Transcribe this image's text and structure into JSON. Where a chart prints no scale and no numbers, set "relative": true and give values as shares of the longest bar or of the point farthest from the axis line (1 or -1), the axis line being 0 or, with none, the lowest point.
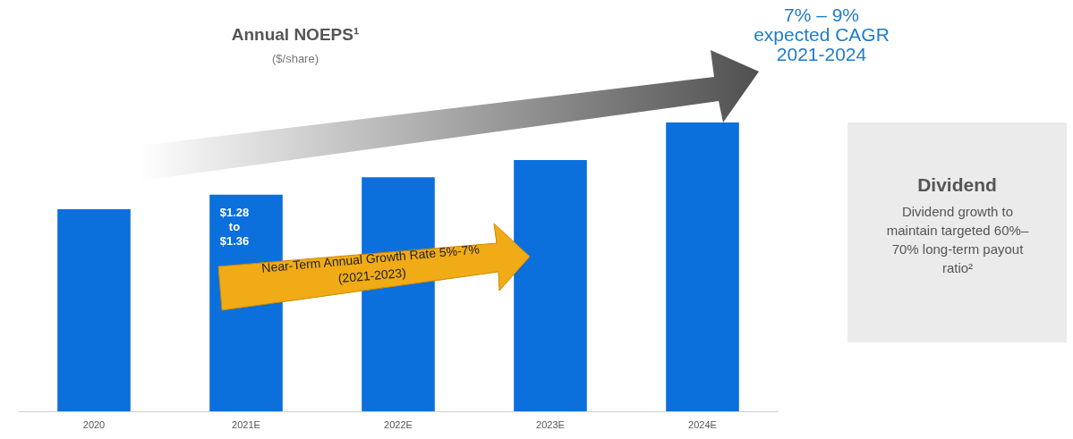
{
  "chart_data": {
    "type": "bar",
    "title": "Annual NOEPS¹",
    "subtitle": "($/share)",
    "relative": true,
    "categories": [
      "2020",
      "2021E",
      "2022E",
      "2023E",
      "2024E"
    ],
    "values": [
      0.7,
      0.75,
      0.81,
      0.87,
      1
    ],
    "annotations": [
      "$1.28\nto\n$1.36",
      "Near-Term Annual Growth Rate 5%-7%\n(2021-2023)",
      "7% – 9%\nexpected CAGR\n2021-2024",
      "Dividend",
      "Dividend growth to maintain targeted 60%–70% long-term payout ratio²"
    ],
    "color": "#0b6fdc"
  }
}
